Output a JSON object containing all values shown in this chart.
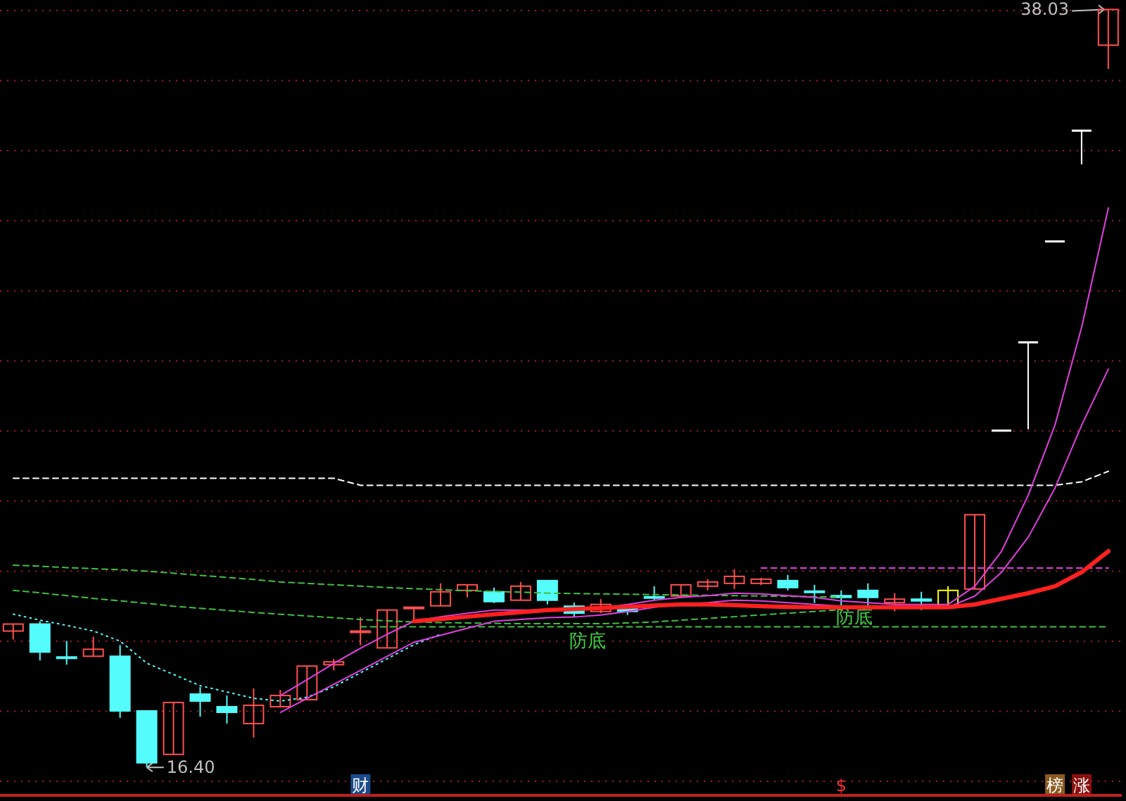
{
  "chart_data": {
    "type": "candlestick",
    "categories": [
      null,
      null,
      null,
      null,
      null,
      null,
      null,
      null,
      null,
      null,
      null,
      null,
      null,
      null,
      null,
      null,
      null,
      null,
      null,
      null,
      null,
      null,
      null,
      null,
      null,
      null,
      null,
      null,
      null,
      null,
      null,
      null,
      null,
      null,
      null,
      null,
      null,
      null,
      null,
      null,
      null,
      null
    ],
    "ohlc": [
      [
        20.29,
        20.49,
        20.05,
        20.49
      ],
      [
        20.49,
        20.57,
        19.45,
        19.69
      ],
      [
        19.55,
        20.01,
        19.33,
        19.51
      ],
      [
        19.57,
        20.13,
        19.57,
        19.77
      ],
      [
        19.57,
        19.89,
        17.81,
        18.01
      ],
      [
        18.01,
        18.01,
        16.4,
        16.53
      ],
      [
        16.77,
        18.25,
        16.77,
        18.25
      ],
      [
        18.49,
        18.69,
        17.85,
        18.29
      ],
      [
        18.13,
        18.45,
        17.65,
        17.97
      ],
      [
        17.65,
        18.65,
        17.25,
        18.17
      ],
      [
        18.13,
        18.61,
        18.13,
        18.45
      ],
      [
        18.33,
        19.29,
        18.33,
        19.29
      ],
      [
        19.33,
        19.49,
        19.17,
        19.41
      ],
      [
        20.25,
        20.69,
        19.89,
        20.29
      ],
      [
        19.81,
        20.89,
        19.81,
        20.89
      ],
      [
        20.93,
        20.97,
        20.61,
        20.97
      ],
      [
        21.01,
        21.65,
        21.01,
        21.41
      ],
      [
        21.45,
        21.61,
        21.25,
        21.61
      ],
      [
        21.41,
        21.53,
        21.09,
        21.13
      ],
      [
        21.17,
        21.69,
        21.17,
        21.57
      ],
      [
        21.73,
        21.73,
        21.05,
        21.17
      ],
      [
        21.0,
        21.1,
        20.7,
        20.8
      ],
      [
        20.85,
        21.2,
        20.8,
        21.05
      ],
      [
        20.95,
        21.0,
        20.75,
        20.85
      ],
      [
        21.27,
        21.57,
        21.17,
        21.23
      ],
      [
        21.29,
        21.61,
        21.29,
        21.61
      ],
      [
        21.57,
        21.77,
        21.45,
        21.69
      ],
      [
        21.65,
        22.05,
        21.49,
        21.85
      ],
      [
        21.65,
        21.81,
        21.6,
        21.77
      ],
      [
        21.73,
        21.89,
        21.45,
        21.53
      ],
      [
        21.43,
        21.61,
        21.09,
        21.39
      ],
      [
        21.3,
        21.45,
        20.97,
        21.25
      ],
      [
        21.45,
        21.65,
        20.97,
        21.25
      ],
      [
        21.1,
        21.37,
        20.85,
        21.2
      ],
      [
        21.2,
        21.41,
        20.89,
        21.15
      ],
      [
        21.01,
        21.57,
        21.01,
        21.45
      ],
      [
        21.49,
        23.61,
        21.49,
        23.61
      ],
      [
        26.01,
        26.01,
        26.01,
        26.01
      ],
      [
        28.53,
        28.53,
        26.05,
        28.53
      ],
      [
        31.41,
        31.41,
        31.41,
        31.41
      ],
      [
        34.57,
        34.57,
        33.61,
        34.57
      ],
      [
        37.01,
        38.03,
        36.33,
        38.03
      ]
    ],
    "colors": [
      "#ff5050",
      "#54fcfc",
      "#54fcfc",
      "#ff5050",
      "#54fcfc",
      "#54fcfc",
      "#ff5050",
      "#54fcfc",
      "#54fcfc",
      "#ff5050",
      "#ff5050",
      "#ff5050",
      "#ff5050",
      "#ff5050",
      "#ff5050",
      "#ff5050",
      "#ff5050",
      "#ff5050",
      "#54fcfc",
      "#ff5050",
      "#54fcfc",
      "#54fcfc",
      "#ff5050",
      "#54fcfc",
      "#54fcfc",
      "#ff5050",
      "#ff5050",
      "#ff5050",
      "#ff5050",
      "#54fcfc",
      "#54fcfc",
      "#54fcfc",
      "#54fcfc",
      "#ff5050",
      "#54fcfc",
      "#ffff00",
      "#ff5050",
      "#ffffff",
      "#ffffff",
      "#ffffff",
      "#ffffff",
      "#ff5050"
    ],
    "series": [
      {
        "type": "line",
        "color": "#ffffff",
        "line_style": "dashed",
        "values": [
          24.65,
          24.65,
          24.65,
          24.65,
          24.65,
          24.65,
          24.65,
          24.65,
          24.65,
          24.65,
          24.65,
          24.65,
          24.65,
          24.45,
          24.45,
          24.45,
          24.45,
          24.45,
          24.45,
          24.45,
          24.45,
          24.45,
          24.45,
          24.45,
          24.45,
          24.45,
          24.45,
          24.45,
          24.45,
          24.45,
          24.45,
          24.45,
          24.45,
          24.45,
          24.45,
          24.45,
          24.45,
          24.45,
          24.45,
          24.45,
          24.55,
          24.85
        ]
      },
      {
        "type": "line",
        "color": "#40c040",
        "line_style": "dashed",
        "values": [
          null,
          null,
          null,
          null,
          null,
          null,
          null,
          null,
          null,
          null,
          null,
          null,
          null,
          20.41,
          20.41,
          20.41,
          20.41,
          20.41,
          20.41,
          20.41,
          20.41,
          20.41,
          20.41,
          20.41,
          20.41,
          20.41,
          20.41,
          20.41,
          20.41,
          20.41,
          20.41,
          20.41,
          20.41,
          20.41,
          20.41,
          20.41,
          20.41,
          20.41,
          20.41,
          20.41,
          20.41,
          20.41
        ]
      },
      {
        "type": "line",
        "color": "#e040e0",
        "line_style": "dashed",
        "values": [
          null,
          null,
          null,
          null,
          null,
          null,
          null,
          null,
          null,
          null,
          null,
          null,
          null,
          null,
          null,
          null,
          null,
          null,
          null,
          null,
          null,
          null,
          null,
          null,
          null,
          null,
          null,
          null,
          22.09,
          22.09,
          22.09,
          22.09,
          22.09,
          22.09,
          22.09,
          22.09,
          22.09,
          22.09,
          22.09,
          22.09,
          22.09,
          22.09
        ]
      },
      {
        "type": "line",
        "color": "#40c040",
        "line_style": "dashed",
        "values": [
          22.17,
          22.14,
          22.1,
          22.07,
          22.04,
          22.0,
          21.94,
          21.88,
          21.82,
          21.76,
          21.69,
          21.65,
          21.61,
          21.57,
          21.53,
          21.5,
          21.47,
          21.44,
          21.42,
          21.4,
          21.37,
          21.36,
          21.35,
          21.34,
          21.33,
          21.32,
          21.31,
          21.3,
          21.29,
          21.28,
          21.27,
          21.26,
          null,
          null,
          null,
          null,
          null,
          null,
          null,
          null,
          null,
          null
        ]
      },
      {
        "type": "line",
        "color": "#40c040",
        "line_style": "dashed",
        "values": [
          21.45,
          21.38,
          21.3,
          21.22,
          21.15,
          21.08,
          21.0,
          20.94,
          20.88,
          20.82,
          20.77,
          20.72,
          20.67,
          20.62,
          20.58,
          20.55,
          20.53,
          20.52,
          20.51,
          20.5,
          20.5,
          20.5,
          20.5,
          20.52,
          20.55,
          20.6,
          20.65,
          20.7,
          20.75,
          20.8,
          20.85,
          20.9,
          null,
          null,
          null,
          null,
          null,
          null,
          null,
          null,
          null,
          null
        ]
      },
      {
        "type": "line",
        "color": "#54fcfc",
        "line_style": "dotted",
        "values": [
          20.77,
          20.6,
          20.45,
          20.29,
          20.0,
          19.37,
          19.05,
          18.73,
          18.55,
          18.37,
          18.29,
          18.4,
          18.7,
          19.1,
          19.5,
          19.9,
          20.2,
          null,
          null,
          null,
          null,
          null,
          null,
          null,
          null,
          null,
          null,
          null,
          null,
          null,
          null,
          null,
          null,
          null,
          null,
          null,
          null,
          null,
          null,
          null,
          null,
          null
        ]
      },
      {
        "type": "line",
        "color": "#e040e0",
        "line_style": "solid",
        "values": [
          null,
          null,
          null,
          null,
          null,
          null,
          null,
          null,
          null,
          null,
          18.45,
          18.9,
          19.37,
          19.8,
          20.2,
          20.57,
          20.7,
          20.8,
          20.89,
          20.89,
          20.89,
          20.89,
          20.95,
          21.05,
          21.17,
          21.25,
          21.3,
          21.37,
          21.35,
          21.3,
          21.25,
          21.15,
          21.1,
          21.05,
          21.05,
          21.05,
          21.57,
          22.57,
          24.17,
          26.17,
          28.97,
          32.37
        ]
      },
      {
        "type": "line",
        "color": "#e040e0",
        "line_style": "solid",
        "values": [
          null,
          null,
          null,
          null,
          null,
          null,
          null,
          null,
          null,
          null,
          17.97,
          18.37,
          18.77,
          19.17,
          19.57,
          19.97,
          20.17,
          20.37,
          20.57,
          20.62,
          20.67,
          20.69,
          20.75,
          20.85,
          20.97,
          21.05,
          21.1,
          21.17,
          21.15,
          21.1,
          21.05,
          21.0,
          20.97,
          20.97,
          20.97,
          20.97,
          21.29,
          21.97,
          22.97,
          24.37,
          26.17,
          27.77
        ]
      },
      {
        "type": "line",
        "color": "#ff2020",
        "line_style": "solid",
        "values": [
          null,
          null,
          null,
          null,
          null,
          null,
          null,
          null,
          null,
          null,
          null,
          null,
          null,
          null,
          null,
          20.57,
          20.63,
          20.7,
          20.77,
          20.83,
          20.89,
          20.92,
          20.95,
          20.98,
          21.02,
          21.05,
          21.05,
          21.03,
          21.0,
          20.98,
          20.97,
          20.97,
          20.97,
          20.97,
          20.97,
          20.97,
          21.05,
          21.21,
          21.37,
          21.57,
          21.97,
          22.57
        ]
      }
    ],
    "ylim": [
      15.6,
      38.3
    ],
    "yticks": [
      {
        "value": 16,
        "label": null
      },
      {
        "value": 18,
        "label": null
      },
      {
        "value": 20,
        "label": null
      },
      {
        "value": 22,
        "label": null
      },
      {
        "value": 24,
        "label": null
      },
      {
        "value": 26,
        "label": null
      },
      {
        "value": 28,
        "label": null
      },
      {
        "value": 30,
        "label": null
      },
      {
        "value": 32,
        "label": null
      },
      {
        "value": 34,
        "label": null
      },
      {
        "value": 36,
        "label": null
      },
      {
        "value": 38,
        "label": null
      }
    ],
    "grid": "y",
    "tick_labels": false,
    "marker": "none",
    "annotations": [
      "16.40",
      "38.03",
      {
        "text": "防底",
        "y": 20.41
      },
      {
        "text": "防底",
        "y": 20.41
      },
      "财",
      "$",
      "榜",
      "涨"
    ]
  }
}
